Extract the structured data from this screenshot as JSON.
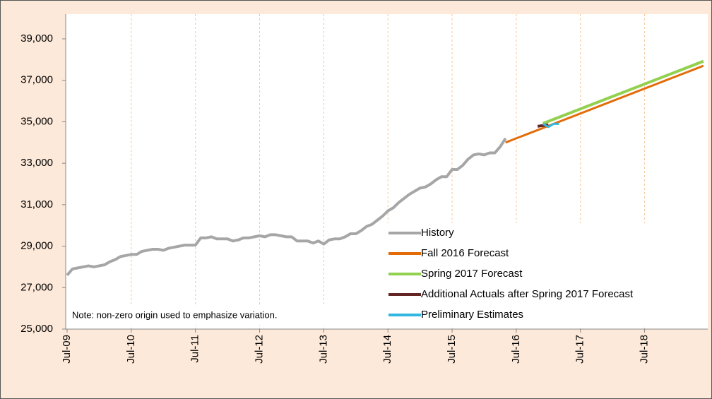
{
  "chart_data": {
    "type": "line",
    "note": "Note: non-zero origin used to emphasize variation.",
    "legend": "lower right",
    "grid": "x",
    "ylim": [
      25000,
      39000
    ],
    "yticks": [
      {
        "value": 25000,
        "label": "25,000"
      },
      {
        "value": 27000,
        "label": "27,000"
      },
      {
        "value": 29000,
        "label": "29,000"
      },
      {
        "value": 31000,
        "label": "31,000"
      },
      {
        "value": 33000,
        "label": "33,000"
      },
      {
        "value": 35000,
        "label": "35,000"
      },
      {
        "value": 37000,
        "label": "37,000"
      },
      {
        "value": 39000,
        "label": "39,000"
      }
    ],
    "categories": [
      "Jul-09",
      null,
      null,
      null,
      null,
      null,
      null,
      null,
      null,
      null,
      null,
      null,
      "Jul-10",
      null,
      null,
      null,
      null,
      null,
      null,
      null,
      null,
      null,
      null,
      null,
      "Jul-11",
      null,
      null,
      null,
      null,
      null,
      null,
      null,
      null,
      null,
      null,
      null,
      "Jul-12",
      null,
      null,
      null,
      null,
      null,
      null,
      null,
      null,
      null,
      null,
      null,
      "Jul-13",
      null,
      null,
      null,
      null,
      null,
      null,
      null,
      null,
      null,
      null,
      null,
      "Jul-14",
      null,
      null,
      null,
      null,
      null,
      null,
      null,
      null,
      null,
      null,
      null,
      "Jul-15",
      null,
      null,
      null,
      null,
      null,
      null,
      null,
      null,
      null,
      null,
      null,
      "Jul-16",
      null,
      null,
      null,
      null,
      null,
      null,
      null,
      null,
      null,
      null,
      null,
      "Jul-17",
      null,
      null,
      null,
      null,
      null,
      null,
      null,
      null,
      null,
      null,
      null,
      "Jul-18",
      null,
      null,
      null,
      null,
      null,
      null,
      null,
      null,
      null,
      null,
      null
    ],
    "series": [
      {
        "name": "History",
        "color": "#a6a6a6",
        "width": 4,
        "values": [
          27600,
          27900,
          27950,
          28000,
          28050,
          28000,
          28050,
          28100,
          28250,
          28350,
          28500,
          28550,
          28600,
          28600,
          28750,
          28800,
          28850,
          28850,
          28800,
          28900,
          28950,
          29000,
          29050,
          29050,
          29050,
          29400,
          29400,
          29450,
          29350,
          29350,
          29350,
          29250,
          29300,
          29400,
          29400,
          29450,
          29500,
          29450,
          29550,
          29550,
          29500,
          29450,
          29450,
          29250,
          29250,
          29250,
          29150,
          29250,
          29100,
          29300,
          29350,
          29350,
          29450,
          29600,
          29600,
          29750,
          29950,
          30050,
          30250,
          30450,
          30700,
          30850,
          31100,
          31300,
          31500,
          31650,
          31800,
          31850,
          32000,
          32200,
          32350,
          32350,
          32700,
          32700,
          32900,
          33200,
          33400,
          33450,
          33400,
          33500,
          33500,
          33800,
          34200,
          null,
          null,
          null,
          null,
          null,
          null,
          null,
          null,
          null,
          null,
          null,
          null,
          null,
          null,
          null,
          null,
          null,
          null,
          null,
          null,
          null,
          null,
          null,
          null,
          null,
          null,
          null,
          null,
          null,
          null,
          null,
          null,
          null,
          null,
          null,
          null,
          null
        ]
      },
      {
        "name": "Fall 2016 Forecast",
        "color": "#e36c09",
        "width": 3,
        "values": [
          null,
          null,
          null,
          null,
          null,
          null,
          null,
          null,
          null,
          null,
          null,
          null,
          null,
          null,
          null,
          null,
          null,
          null,
          null,
          null,
          null,
          null,
          null,
          null,
          null,
          null,
          null,
          null,
          null,
          null,
          null,
          null,
          null,
          null,
          null,
          null,
          null,
          null,
          null,
          null,
          null,
          null,
          null,
          null,
          null,
          null,
          null,
          null,
          null,
          null,
          null,
          null,
          null,
          null,
          null,
          null,
          null,
          null,
          null,
          null,
          null,
          null,
          null,
          null,
          null,
          null,
          null,
          null,
          null,
          null,
          null,
          null,
          null,
          null,
          null,
          null,
          null,
          null,
          null,
          null,
          null,
          null,
          34000,
          34100,
          34200,
          34300,
          34400,
          34500,
          34600,
          34700,
          34800,
          34900,
          35000,
          35100,
          35200,
          35300,
          35400,
          35500,
          35600,
          35700,
          35800,
          35900,
          36000,
          36100,
          36200,
          36300,
          36400,
          36500,
          36600,
          36700,
          36800,
          36900,
          37000,
          37100,
          37200,
          37300,
          37400,
          37500,
          37600,
          37700
        ]
      },
      {
        "name": "Spring 2017 Forecast",
        "color": "#92d050",
        "width": 4,
        "values": [
          null,
          null,
          null,
          null,
          null,
          null,
          null,
          null,
          null,
          null,
          null,
          null,
          null,
          null,
          null,
          null,
          null,
          null,
          null,
          null,
          null,
          null,
          null,
          null,
          null,
          null,
          null,
          null,
          null,
          null,
          null,
          null,
          null,
          null,
          null,
          null,
          null,
          null,
          null,
          null,
          null,
          null,
          null,
          null,
          null,
          null,
          null,
          null,
          null,
          null,
          null,
          null,
          null,
          null,
          null,
          null,
          null,
          null,
          null,
          null,
          null,
          null,
          null,
          null,
          null,
          null,
          null,
          null,
          null,
          null,
          null,
          null,
          null,
          null,
          null,
          null,
          null,
          null,
          null,
          null,
          null,
          null,
          null,
          null,
          null,
          null,
          null,
          null,
          null,
          34920,
          35020,
          35120,
          35220,
          35320,
          35420,
          35520,
          35620,
          35720,
          35820,
          35920,
          36020,
          36120,
          36220,
          36320,
          36420,
          36520,
          36620,
          36720,
          36820,
          36920,
          37020,
          37120,
          37220,
          37320,
          37420,
          37520,
          37620,
          37720,
          37820,
          37920
        ]
      },
      {
        "name": "Additional Actuals after Spring 2017 Forecast",
        "color": "#632523",
        "width": 4,
        "values": [
          null,
          null,
          null,
          null,
          null,
          null,
          null,
          null,
          null,
          null,
          null,
          null,
          null,
          null,
          null,
          null,
          null,
          null,
          null,
          null,
          null,
          null,
          null,
          null,
          null,
          null,
          null,
          null,
          null,
          null,
          null,
          null,
          null,
          null,
          null,
          null,
          null,
          null,
          null,
          null,
          null,
          null,
          null,
          null,
          null,
          null,
          null,
          null,
          null,
          null,
          null,
          null,
          null,
          null,
          null,
          null,
          null,
          null,
          null,
          null,
          null,
          null,
          null,
          null,
          null,
          null,
          null,
          null,
          null,
          null,
          null,
          null,
          null,
          null,
          null,
          null,
          null,
          null,
          null,
          null,
          null,
          null,
          null,
          null,
          null,
          null,
          null,
          null,
          34780,
          34820,
          34850,
          null,
          null,
          null,
          null,
          null,
          null,
          null,
          null,
          null,
          null,
          null,
          null,
          null,
          null,
          null,
          null,
          null,
          null,
          null,
          null,
          null,
          null,
          null,
          null,
          null,
          null,
          null,
          null,
          null
        ]
      },
      {
        "name": "Preliminary Estimates",
        "color": "#31b7e0",
        "width": 3,
        "values": [
          null,
          null,
          null,
          null,
          null,
          null,
          null,
          null,
          null,
          null,
          null,
          null,
          null,
          null,
          null,
          null,
          null,
          null,
          null,
          null,
          null,
          null,
          null,
          null,
          null,
          null,
          null,
          null,
          null,
          null,
          null,
          null,
          null,
          null,
          null,
          null,
          null,
          null,
          null,
          null,
          null,
          null,
          null,
          null,
          null,
          null,
          null,
          null,
          null,
          null,
          null,
          null,
          null,
          null,
          null,
          null,
          null,
          null,
          null,
          null,
          null,
          null,
          null,
          null,
          null,
          null,
          null,
          null,
          null,
          null,
          null,
          null,
          null,
          null,
          null,
          null,
          null,
          null,
          null,
          null,
          null,
          null,
          null,
          null,
          null,
          null,
          null,
          null,
          null,
          34900,
          34750,
          34900,
          34900,
          null,
          null,
          null,
          null,
          null,
          null,
          null,
          null,
          null,
          null,
          null,
          null,
          null,
          null,
          null,
          null,
          null,
          null,
          null,
          null,
          null,
          null,
          null,
          null,
          null,
          null,
          null
        ]
      }
    ]
  }
}
